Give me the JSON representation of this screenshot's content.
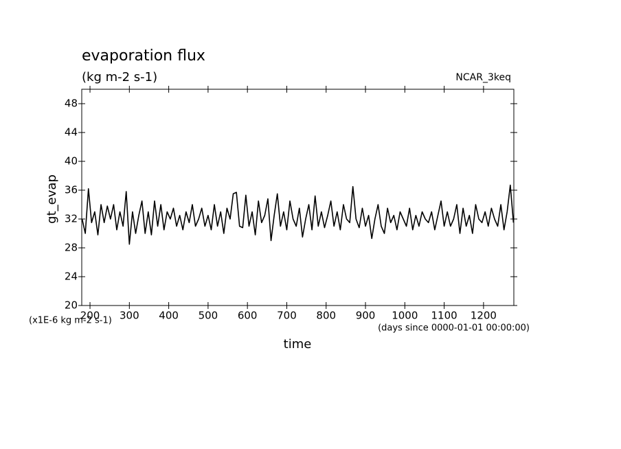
{
  "chart_data": {
    "type": "line",
    "title": "evaporation flux",
    "subtitle": "(kg m-2 s-1)",
    "annotation": "NCAR_3keq",
    "ylabel": "gt_evap",
    "xlabel": "time",
    "yunit_note": "(x1E-6 kg m-2 s-1)",
    "xunit_note": "(days since 0000-01-01 00:00:00)",
    "xlim": [
      179,
      1277
    ],
    "ylim": [
      20,
      50
    ],
    "xticks": [
      200,
      300,
      400,
      500,
      600,
      700,
      800,
      900,
      1000,
      1100,
      1200
    ],
    "yticks": [
      20,
      24,
      28,
      32,
      36,
      40,
      44,
      48
    ],
    "x": [
      180,
      188,
      196,
      204,
      212,
      220,
      228,
      236,
      244,
      252,
      260,
      268,
      276,
      284,
      292,
      300,
      308,
      316,
      324,
      332,
      340,
      348,
      356,
      364,
      372,
      380,
      388,
      396,
      404,
      412,
      420,
      428,
      436,
      444,
      452,
      460,
      468,
      476,
      484,
      492,
      500,
      508,
      516,
      524,
      532,
      540,
      548,
      556,
      564,
      572,
      580,
      588,
      596,
      604,
      612,
      620,
      628,
      636,
      644,
      652,
      660,
      668,
      676,
      684,
      692,
      700,
      708,
      716,
      724,
      732,
      740,
      748,
      756,
      764,
      772,
      780,
      788,
      796,
      804,
      812,
      820,
      828,
      836,
      844,
      852,
      860,
      868,
      876,
      884,
      892,
      900,
      908,
      916,
      924,
      932,
      940,
      948,
      956,
      964,
      972,
      980,
      988,
      996,
      1004,
      1012,
      1020,
      1028,
      1036,
      1044,
      1052,
      1060,
      1068,
      1076,
      1084,
      1092,
      1100,
      1108,
      1116,
      1124,
      1132,
      1140,
      1148,
      1156,
      1164,
      1172,
      1180,
      1188,
      1196,
      1204,
      1212,
      1220,
      1228,
      1236,
      1244,
      1252,
      1260,
      1268,
      1276
    ],
    "series": [
      {
        "name": "gt_evap",
        "color": "#000000",
        "values": [
          32,
          30,
          36.2,
          31.5,
          33,
          29.8,
          34,
          31.5,
          33.8,
          32,
          34,
          30.5,
          33,
          31,
          35.8,
          28.5,
          33,
          30,
          32.5,
          34.5,
          30,
          33,
          29.8,
          34.5,
          31,
          34,
          30.5,
          33,
          32,
          33.5,
          31,
          32.5,
          30.5,
          33,
          31.5,
          34,
          31,
          32,
          33.5,
          31,
          32.5,
          30.5,
          34,
          31,
          33,
          30,
          33.5,
          32,
          35.5,
          35.7,
          31,
          30.8,
          35.3,
          31,
          33,
          29.8,
          34.5,
          31.5,
          32.5,
          34.8,
          29,
          32.5,
          35.5,
          31,
          33,
          30.5,
          34.5,
          32,
          31,
          33.5,
          29.5,
          32,
          34,
          30.5,
          35.2,
          31,
          33,
          30.8,
          32.5,
          34.5,
          31,
          33,
          30.5,
          34,
          32,
          31.5,
          36.5,
          32,
          30.8,
          33.5,
          31,
          32.5,
          29.3,
          32,
          34,
          31,
          30,
          33.5,
          31.5,
          32.5,
          30.5,
          33,
          32,
          31,
          33.5,
          30.5,
          32.5,
          31,
          33,
          32,
          31.5,
          33,
          30.5,
          32.5,
          34.5,
          31,
          33,
          31,
          32,
          34,
          30,
          33.5,
          31,
          32.5,
          30,
          34,
          32,
          31.5,
          33,
          31,
          33.5,
          32,
          31,
          34,
          30.5,
          33,
          36.7,
          31.5
        ]
      }
    ]
  }
}
